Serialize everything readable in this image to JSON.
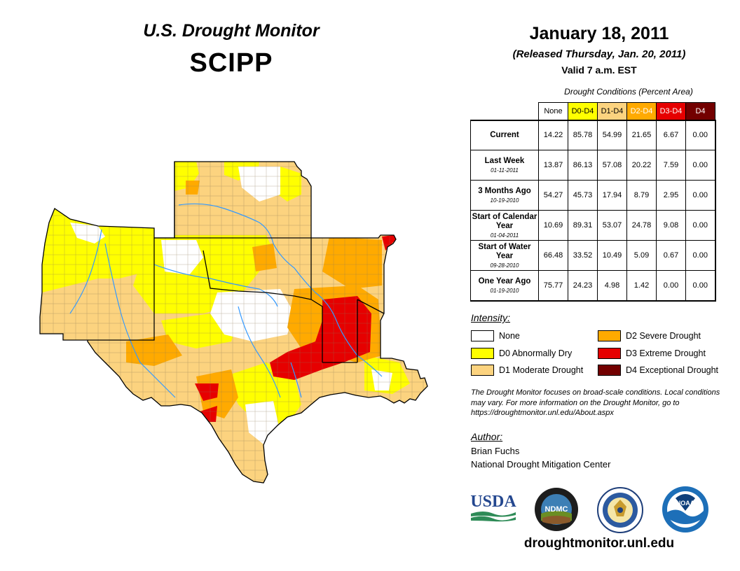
{
  "header": {
    "monitor_title": "U.S. Drought Monitor",
    "region": "SCIPP",
    "date": "January 18, 2011",
    "released": "(Released Thursday, Jan. 20, 2011)",
    "valid": "Valid 7 a.m. EST"
  },
  "chart_data": {
    "type": "table",
    "title": "Drought Conditions (Percent Area)",
    "columns": [
      {
        "label": "None",
        "color": "#ffffff",
        "text_color": "#000000"
      },
      {
        "label": "D0-D4",
        "color": "#ffff00",
        "text_color": "#000000"
      },
      {
        "label": "D1-D4",
        "color": "#fcd37f",
        "text_color": "#000000"
      },
      {
        "label": "D2-D4",
        "color": "#ffaa00",
        "text_color": "#ffffff"
      },
      {
        "label": "D3-D4",
        "color": "#e60000",
        "text_color": "#ffffff"
      },
      {
        "label": "D4",
        "color": "#730000",
        "text_color": "#ffffff"
      }
    ],
    "rows": [
      {
        "label": "Current",
        "date": "",
        "values": [
          "14.22",
          "85.78",
          "54.99",
          "21.65",
          "6.67",
          "0.00"
        ]
      },
      {
        "label": "Last Week",
        "date": "01-11-2011",
        "values": [
          "13.87",
          "86.13",
          "57.08",
          "20.22",
          "7.59",
          "0.00"
        ]
      },
      {
        "label": "3 Months Ago",
        "date": "10-19-2010",
        "values": [
          "54.27",
          "45.73",
          "17.94",
          "8.79",
          "2.95",
          "0.00"
        ]
      },
      {
        "label": "Start of Calendar Year",
        "date": "01-04-2011",
        "values": [
          "10.69",
          "89.31",
          "53.07",
          "24.78",
          "9.08",
          "0.00"
        ]
      },
      {
        "label": "Start of Water Year",
        "date": "09-28-2010",
        "values": [
          "66.48",
          "33.52",
          "10.49",
          "5.09",
          "0.67",
          "0.00"
        ]
      },
      {
        "label": "One Year Ago",
        "date": "01-19-2010",
        "values": [
          "75.77",
          "24.23",
          "4.98",
          "1.42",
          "0.00",
          "0.00"
        ]
      }
    ]
  },
  "legend": {
    "heading": "Intensity:",
    "items": [
      {
        "label": "None",
        "color": "#ffffff"
      },
      {
        "label": "D0 Abnormally Dry",
        "color": "#ffff00"
      },
      {
        "label": "D1 Moderate Drought",
        "color": "#fcd37f"
      },
      {
        "label": "D2 Severe Drought",
        "color": "#ffaa00"
      },
      {
        "label": "D3 Extreme Drought",
        "color": "#e60000"
      },
      {
        "label": "D4 Exceptional Drought",
        "color": "#730000"
      }
    ]
  },
  "note": "The Drought Monitor focuses on broad-scale conditions. Local conditions may vary. For more information on the Drought Monitor, go to https://droughtmonitor.unl.edu/About.aspx",
  "author": {
    "heading": "Author:",
    "name": "Brian Fuchs",
    "org": "National Drought Mitigation Center"
  },
  "logos": {
    "usda": "USDA",
    "ndmc": "NDMC",
    "noaa": "NOAA",
    "usda_icon": "usda-logo",
    "ndmc_icon": "ndmc-logo",
    "doc_icon": "commerce-seal",
    "noaa_icon": "noaa-logo"
  },
  "footer": {
    "url": "droughtmonitor.unl.edu"
  }
}
